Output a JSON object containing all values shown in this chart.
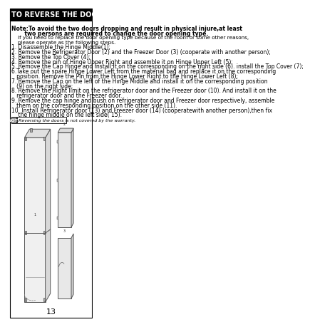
{
  "page_number": "13",
  "title": "TO REVERSE THE DOORS (OPTIONAL)",
  "title_bg": "#000000",
  "title_fg": "#ffffff",
  "note_bold_1": "Note:To avoid the two doors dropping and result in physical injure,at least",
  "note_bold_2": "       two persons are required to change the door opening type.",
  "note_normal_1": "    If you need to replace the door opening type because of the room or some other reasons,",
  "note_normal_2": "    please operate as the following steps.",
  "steps": [
    "1. Disassemble the Hinge Middle(1);",
    "2. Remove the Refrigerator Door (2) and the Freezer Door (3) (cooperate with another person);",
    "3. Remove the Top Cover (4);",
    "4. Remove the pin of Hinge Upper Right and assemble it on Hinge Upper Left (5);",
    "5. Remove the Cap Hinge and install it on the corresponding on the right side (6). install the Top Cover (7);",
    "6.Take out the spare Hinge Lower Left from the material bag and replace it on the corresponding",
    "   position. Remove the Pin from the Hinge Lower Right to the Hinge Lower Left (8);",
    "7. Remove the Cap on the left of the Hinge Middle and install it on the corresponding position",
    "   (9) on the right side;",
    "8. Remove the Right limit on the refrigerator door and the Freezer door (10). And install it on the",
    "   refrigerator door and the Freezer door.",
    "9. Remove the cap hinge and bush on refrigerator door and Freezer door respectively, assemble",
    "   them on the corresponding position on the other side (11).",
    "10. Install Refrigerator door (13) and Freezer door (14) (cooperatewith another person),then fix",
    "    the hinge middle on the left side( 15)."
  ],
  "note2_label": "NOTE",
  "note2_text": "Reversing the doors is not covered by the warranty.",
  "bg_color": "#ffffff",
  "border_color": "#000000",
  "text_color": "#000000",
  "title_fontsize": 7.0,
  "body_fontsize": 5.5,
  "step_fontsize": 5.5
}
